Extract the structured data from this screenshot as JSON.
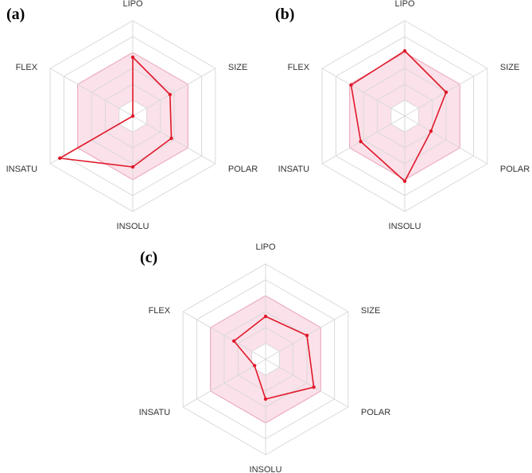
{
  "chart_data": [
    {
      "type": "radar",
      "panel_label": "(a)",
      "axes": [
        "LIPO",
        "SIZE",
        "POLAR",
        "INSOLU",
        "INSATU",
        "FLEX"
      ],
      "range": [
        0,
        6
      ],
      "grid_rings": [
        1,
        2,
        3,
        4,
        5,
        6
      ],
      "optimal_zone": {
        "inner": 1,
        "outer": 4
      },
      "values": [
        3.7,
        2.7,
        2.8,
        3.2,
        5.3,
        0.0
      ]
    },
    {
      "type": "radar",
      "panel_label": "(b)",
      "axes": [
        "LIPO",
        "SIZE",
        "POLAR",
        "INSOLU",
        "INSATU",
        "FLEX"
      ],
      "range": [
        0,
        6
      ],
      "grid_rings": [
        1,
        2,
        3,
        4,
        5,
        6
      ],
      "optimal_zone": {
        "inner": 1,
        "outer": 4
      },
      "values": [
        4.1,
        3.0,
        1.9,
        4.1,
        3.2,
        3.9
      ]
    },
    {
      "type": "radar",
      "panel_label": "(c)",
      "axes": [
        "LIPO",
        "SIZE",
        "POLAR",
        "INSOLU",
        "INSATU",
        "FLEX"
      ],
      "range": [
        0,
        6
      ],
      "grid_rings": [
        1,
        2,
        3,
        4,
        5,
        6
      ],
      "optimal_zone": {
        "inner": 1,
        "outer": 4
      },
      "values": [
        2.7,
        3.0,
        3.5,
        2.5,
        0.8,
        2.3
      ]
    }
  ],
  "colors": {
    "grid": "#d9d9d9",
    "spoke": "#d9d9d9",
    "zone_fill": "#f9d7e1",
    "zone_stroke": "#e8a0b4",
    "series": "#e0192a"
  }
}
